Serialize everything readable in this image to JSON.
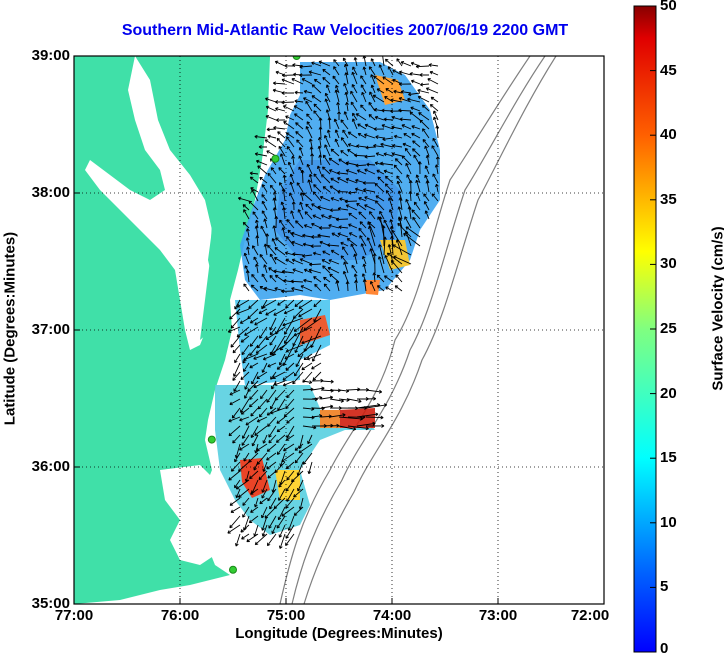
{
  "title": "Southern Mid-Atlantic Raw Velocities 2007/06/19 2200 GMT",
  "x_axis": {
    "label": "Longitude (Degrees:Minutes)",
    "ticks": [
      "77:00",
      "76:00",
      "75:00",
      "74:00",
      "73:00",
      "72:00"
    ]
  },
  "y_axis": {
    "label": "Latitude (Degrees:Minutes)",
    "ticks": [
      "39:00",
      "38:00",
      "37:00",
      "36:00",
      "35:00"
    ]
  },
  "colorbar": {
    "label": "Surface Velocity (cm/s)",
    "ticks": [
      "50",
      "45",
      "40",
      "35",
      "30",
      "25",
      "20",
      "15",
      "10",
      "5",
      "0"
    ],
    "range": [
      0,
      50
    ],
    "colormap": "jet"
  },
  "colors": {
    "title": "#0000ee",
    "land": "#40e0a8",
    "coast": "#808080",
    "grid": "#000000",
    "arrow": "#000000",
    "station": "#33cc33"
  },
  "map": {
    "lon_range": [
      -77,
      -72
    ],
    "lat_range": [
      35,
      39
    ],
    "grid": "dotted",
    "velocity_field": "arrows colored by speed",
    "stations": [
      {
        "lon": -74.9,
        "lat": 39.0
      },
      {
        "lon": -75.1,
        "lat": 38.25
      },
      {
        "lon": -75.7,
        "lat": 36.2
      },
      {
        "lon": -75.5,
        "lat": 35.25
      }
    ]
  }
}
